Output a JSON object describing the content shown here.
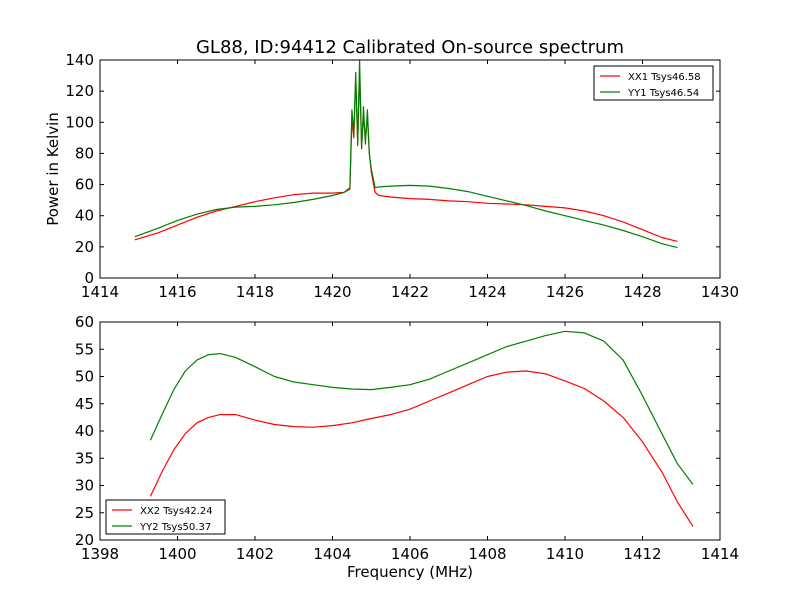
{
  "chart_data": [
    {
      "type": "line",
      "title": "GL88, ID:94412 Calibrated On-source spectrum",
      "xlabel": "",
      "ylabel": "Power in Kelvin",
      "xlim": [
        1414,
        1430
      ],
      "ylim": [
        0,
        140
      ],
      "xticks": [
        "1414",
        "1416",
        "1418",
        "1420",
        "1422",
        "1424",
        "1426",
        "1428",
        "1430"
      ],
      "yticks": [
        "0",
        "20",
        "40",
        "60",
        "80",
        "100",
        "120",
        "140"
      ],
      "grid": false,
      "legend_position": "top-right",
      "series": [
        {
          "name": "XX1 Tsys46.58",
          "color": "#ff0000",
          "x": [
            1414.9,
            1415.5,
            1416.0,
            1416.5,
            1417.0,
            1417.5,
            1418.0,
            1418.5,
            1419.0,
            1419.5,
            1420.0,
            1420.3,
            1420.45,
            1420.5,
            1420.55,
            1420.6,
            1420.65,
            1420.7,
            1420.75,
            1420.8,
            1420.85,
            1420.9,
            1420.95,
            1421.0,
            1421.1,
            1421.2,
            1421.5,
            1422.0,
            1422.5,
            1423.0,
            1423.5,
            1424.0,
            1424.5,
            1425.0,
            1425.5,
            1426.0,
            1426.5,
            1427.0,
            1427.5,
            1428.0,
            1428.5,
            1428.9
          ],
          "y": [
            24.5,
            29,
            34,
            39,
            43,
            46,
            49,
            51.5,
            53.5,
            54.5,
            54.5,
            55,
            57,
            102,
            90,
            128,
            88,
            133,
            84,
            105,
            88,
            104,
            80,
            68,
            55,
            53,
            52,
            51,
            50.5,
            49.5,
            49,
            48,
            47.5,
            47,
            46,
            45,
            43,
            40,
            36,
            31,
            26,
            23.5
          ]
        },
        {
          "name": "YY1 Tsys46.54",
          "color": "#008000",
          "x": [
            1414.9,
            1415.5,
            1416.0,
            1416.5,
            1417.0,
            1417.5,
            1418.0,
            1418.5,
            1419.0,
            1419.5,
            1420.0,
            1420.3,
            1420.45,
            1420.5,
            1420.55,
            1420.6,
            1420.65,
            1420.7,
            1420.75,
            1420.8,
            1420.85,
            1420.9,
            1420.95,
            1421.0,
            1421.1,
            1421.2,
            1421.5,
            1422.0,
            1422.5,
            1423.0,
            1423.5,
            1424.0,
            1424.5,
            1425.0,
            1425.5,
            1426.0,
            1426.5,
            1427.0,
            1427.5,
            1428.0,
            1428.5,
            1428.9
          ],
          "y": [
            26.5,
            32,
            37,
            41,
            44,
            45.5,
            46,
            47,
            48.5,
            50.5,
            53,
            55,
            58,
            108,
            92,
            132,
            85,
            140,
            83,
            110,
            86,
            108,
            80,
            70,
            58,
            58.5,
            59,
            59.5,
            59,
            57.5,
            55.5,
            52.5,
            49.5,
            46.5,
            43,
            40,
            37,
            34,
            30.5,
            26.5,
            22,
            19.5
          ]
        }
      ]
    },
    {
      "type": "line",
      "title": "",
      "xlabel": "Frequency (MHz)",
      "ylabel": "",
      "xlim": [
        1398,
        1414
      ],
      "ylim": [
        20,
        60
      ],
      "xticks": [
        "1398",
        "1400",
        "1402",
        "1404",
        "1406",
        "1408",
        "1410",
        "1412",
        "1414"
      ],
      "yticks": [
        "20",
        "25",
        "30",
        "35",
        "40",
        "45",
        "50",
        "55",
        "60"
      ],
      "grid": false,
      "legend_position": "bottom-left",
      "series": [
        {
          "name": "XX2 Tsys42.24",
          "color": "#ff0000",
          "x": [
            1399.3,
            1399.6,
            1399.9,
            1400.2,
            1400.5,
            1400.8,
            1401.1,
            1401.5,
            1402.0,
            1402.5,
            1403.0,
            1403.5,
            1404.0,
            1404.5,
            1405.0,
            1405.5,
            1406.0,
            1406.5,
            1407.0,
            1407.5,
            1408.0,
            1408.5,
            1409.0,
            1409.5,
            1410.0,
            1410.5,
            1411.0,
            1411.5,
            1412.0,
            1412.5,
            1412.9,
            1413.3
          ],
          "y": [
            28,
            32.5,
            36.5,
            39.5,
            41.5,
            42.5,
            43,
            43,
            42,
            41.2,
            40.8,
            40.7,
            41,
            41.5,
            42.3,
            43,
            44,
            45.5,
            47,
            48.5,
            50,
            50.8,
            51,
            50.5,
            49.2,
            47.8,
            45.5,
            42.5,
            38,
            32.5,
            27,
            22.5
          ]
        },
        {
          "name": "YY2 Tsys50.37",
          "color": "#008000",
          "x": [
            1399.3,
            1399.6,
            1399.9,
            1400.2,
            1400.5,
            1400.8,
            1401.1,
            1401.5,
            1402.0,
            1402.5,
            1403.0,
            1403.5,
            1404.0,
            1404.5,
            1405.0,
            1405.5,
            1406.0,
            1406.5,
            1407.0,
            1407.5,
            1408.0,
            1408.5,
            1409.0,
            1409.5,
            1410.0,
            1410.5,
            1411.0,
            1411.5,
            1412.0,
            1412.5,
            1412.9,
            1413.3
          ],
          "y": [
            38.3,
            43,
            47.5,
            51,
            53,
            54,
            54.2,
            53.5,
            51.8,
            50,
            49,
            48.5,
            48,
            47.7,
            47.6,
            48,
            48.5,
            49.5,
            51,
            52.5,
            54,
            55.5,
            56.5,
            57.5,
            58.3,
            58,
            56.5,
            53,
            46.5,
            39.5,
            34,
            30.2
          ]
        }
      ]
    }
  ]
}
